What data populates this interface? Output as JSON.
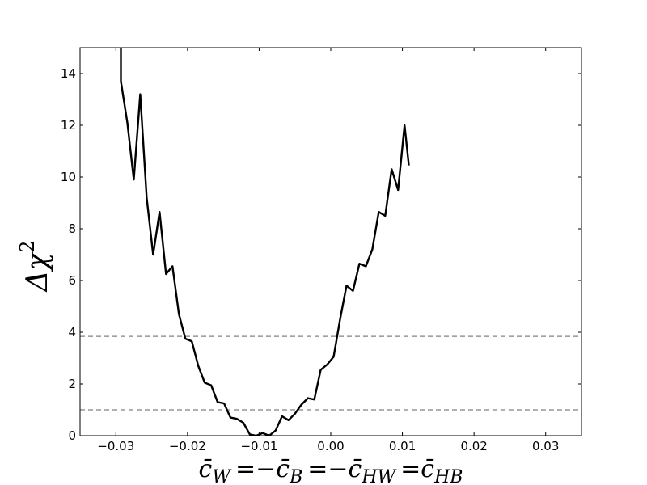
{
  "chart_data": {
    "type": "line",
    "title": "",
    "xlabel_parts": [
      {
        "kind": "sym",
        "text": "c̄"
      },
      {
        "kind": "sub",
        "text": "W"
      },
      {
        "kind": "op",
        "text": "=−"
      },
      {
        "kind": "sym",
        "text": "c̄"
      },
      {
        "kind": "sub",
        "text": "B"
      },
      {
        "kind": "op",
        "text": "=−"
      },
      {
        "kind": "sym",
        "text": "c̄"
      },
      {
        "kind": "sub",
        "text": "HW"
      },
      {
        "kind": "op",
        "text": "="
      },
      {
        "kind": "sym",
        "text": "c̄"
      },
      {
        "kind": "sub",
        "text": "HB"
      }
    ],
    "ylabel_base": "Δχ",
    "ylabel_sup": "2",
    "xlim": [
      -0.035,
      0.035
    ],
    "ylim": [
      0,
      15
    ],
    "xticks": [
      -0.03,
      -0.02,
      -0.01,
      0.0,
      0.01,
      0.02,
      0.03
    ],
    "xtick_labels": [
      "−0.03",
      "−0.02",
      "−0.01",
      "0.00",
      "0.01",
      "0.02",
      "0.03"
    ],
    "yticks": [
      0,
      2,
      4,
      6,
      8,
      10,
      12,
      14
    ],
    "ytick_labels": [
      "0",
      "2",
      "4",
      "6",
      "8",
      "10",
      "12",
      "14"
    ],
    "reference_lines": [
      {
        "y": 3.84,
        "style": "dashed",
        "color": "#808080"
      },
      {
        "y": 1.0,
        "style": "dashed",
        "color": "#808080"
      }
    ],
    "series": [
      {
        "color": "#000000",
        "x": [
          -0.0293,
          -0.0293,
          -0.0284,
          -0.0275,
          -0.0266,
          -0.0257,
          -0.0248,
          -0.0239,
          -0.023,
          -0.0221,
          -0.0212,
          -0.0203,
          -0.0194,
          -0.0185,
          -0.0176,
          -0.0167,
          -0.0158,
          -0.0149,
          -0.014,
          -0.0131,
          -0.0122,
          -0.0113,
          -0.0104,
          -0.0095,
          -0.0086,
          -0.0077,
          -0.0068,
          -0.0059,
          -0.005,
          -0.0041,
          -0.0032,
          -0.0023,
          -0.0014,
          -0.0005,
          0.0004,
          0.0013,
          0.0022,
          0.0031,
          0.004,
          0.0049,
          0.0058,
          0.0067,
          0.0076,
          0.0085,
          0.0094,
          0.0103,
          0.0109
        ],
        "y": [
          15.0,
          13.7,
          12.1,
          9.9,
          13.2,
          9.2,
          7.0,
          8.65,
          6.25,
          6.55,
          4.7,
          3.75,
          3.65,
          2.7,
          2.05,
          1.95,
          1.3,
          1.25,
          0.7,
          0.65,
          0.5,
          0.05,
          0.0,
          0.1,
          0.0,
          0.2,
          0.75,
          0.6,
          0.85,
          1.2,
          1.45,
          1.4,
          2.55,
          2.75,
          3.05,
          4.5,
          5.8,
          5.6,
          6.65,
          6.55,
          7.2,
          8.65,
          8.5,
          10.3,
          9.5,
          12.0,
          10.45
        ]
      }
    ]
  }
}
